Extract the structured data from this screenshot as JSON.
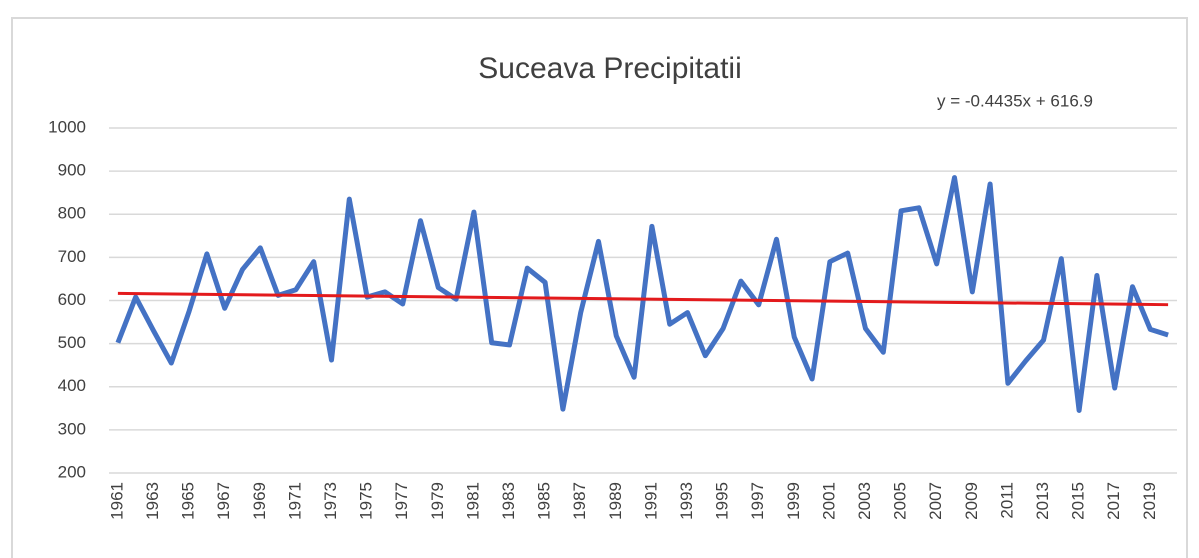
{
  "chart_data": {
    "type": "line",
    "title": "Suceava Precipitatii",
    "categories": [
      "1961",
      null,
      "1963",
      null,
      "1965",
      null,
      "1967",
      null,
      "1969",
      null,
      "1971",
      null,
      "1973",
      null,
      "1975",
      null,
      "1977",
      null,
      "1979",
      null,
      "1981",
      null,
      "1983",
      null,
      "1985",
      null,
      "1987",
      null,
      "1989",
      null,
      "1991",
      null,
      "1993",
      null,
      "1995",
      null,
      "1997",
      null,
      "1999",
      null,
      "2001",
      null,
      "2003",
      null,
      "2005",
      null,
      "2007",
      null,
      "2009",
      null,
      "2011",
      null,
      "2013",
      null,
      "2015",
      null,
      "2017",
      null,
      "2019",
      null
    ],
    "series": [
      {
        "color": "#4472c4",
        "values": [
          502,
          608,
          530,
          455,
          575,
          708,
          582,
          672,
          722,
          612,
          625,
          690,
          462,
          835,
          608,
          620,
          592,
          785,
          630,
          603,
          805,
          502,
          497,
          675,
          642,
          348,
          572,
          737,
          518,
          422,
          772,
          545,
          572,
          472,
          535,
          645,
          590,
          742,
          515,
          418,
          690,
          710,
          535,
          480,
          808,
          815,
          685,
          885,
          620,
          870,
          408,
          460,
          508,
          697,
          345,
          658,
          397,
          632,
          533,
          520
        ]
      }
    ],
    "trendline": {
      "slope": -0.4435,
      "intercept": 616.9,
      "color": "#e31a1c",
      "label": "y = -0.4435x + 616.9"
    },
    "ylim": [
      200,
      1000
    ],
    "yticks": [
      200,
      300,
      400,
      500,
      600,
      700,
      800,
      900,
      1000
    ],
    "grid": true
  }
}
